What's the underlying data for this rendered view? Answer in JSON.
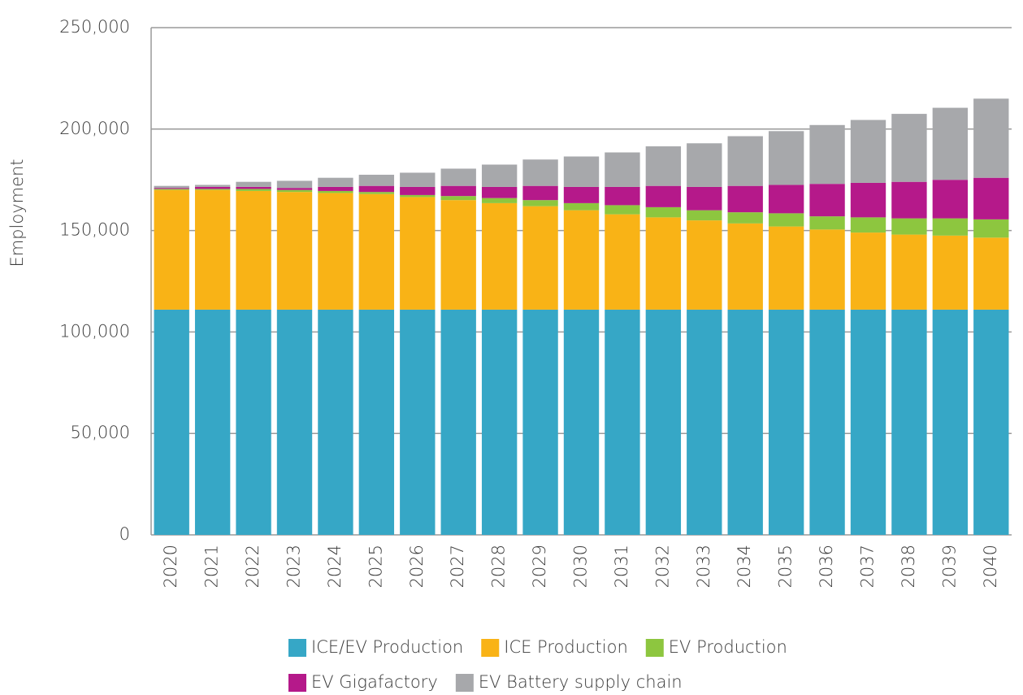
{
  "chart_data": {
    "type": "stacked_bar",
    "y_label": "Employment",
    "categories": [
      "2020",
      "2021",
      "2022",
      "2023",
      "2024",
      "2025",
      "2026",
      "2027",
      "2028",
      "2029",
      "2030",
      "2031",
      "2032",
      "2033",
      "2034",
      "2035",
      "2036",
      "2037",
      "2038",
      "2039",
      "2040"
    ],
    "series": [
      {
        "name": "ICE/EV Production",
        "color": "#36a7c6",
        "values": [
          111000,
          111000,
          111000,
          111000,
          111000,
          111000,
          111000,
          111000,
          111000,
          111000,
          111000,
          111000,
          111000,
          111000,
          111000,
          111000,
          111000,
          111000,
          111000,
          111000,
          111000
        ]
      },
      {
        "name": "ICE Production",
        "color": "#f9b316",
        "values": [
          59000,
          59000,
          58500,
          58000,
          57500,
          57000,
          55500,
          54000,
          52500,
          51000,
          49000,
          47000,
          45500,
          44000,
          42500,
          41000,
          39500,
          38000,
          37000,
          36500,
          35500
        ]
      },
      {
        "name": "EV Production",
        "color": "#8dc63f",
        "values": [
          500,
          500,
          1000,
          1000,
          1000,
          1000,
          1000,
          2000,
          2500,
          3000,
          3500,
          4500,
          5000,
          5000,
          5500,
          6500,
          6500,
          7500,
          8000,
          8500,
          9000
        ]
      },
      {
        "name": "EV Gigafactory",
        "color": "#b5198a",
        "values": [
          500,
          1000,
          1000,
          1000,
          2000,
          3000,
          4000,
          5000,
          5500,
          7000,
          8000,
          9000,
          10500,
          11500,
          13000,
          14000,
          16000,
          17000,
          18000,
          19000,
          20500
        ]
      },
      {
        "name": "EV Battery supply chain",
        "color": "#a7a8ab",
        "values": [
          1000,
          1000,
          2500,
          3500,
          4500,
          5500,
          7000,
          8500,
          11000,
          13000,
          15000,
          17000,
          19500,
          21500,
          24500,
          26500,
          29000,
          31000,
          33500,
          35500,
          39000
        ]
      }
    ],
    "ylim": [
      0,
      250000
    ],
    "yticks": [
      {
        "value": 0,
        "label": "0"
      },
      {
        "value": 50000,
        "label": "50,000"
      },
      {
        "value": 100000,
        "label": "100,000"
      },
      {
        "value": 150000,
        "label": "150,000"
      },
      {
        "value": 200000,
        "label": "200,000"
      },
      {
        "value": 250000,
        "label": "250,000"
      }
    ],
    "grid": true
  }
}
